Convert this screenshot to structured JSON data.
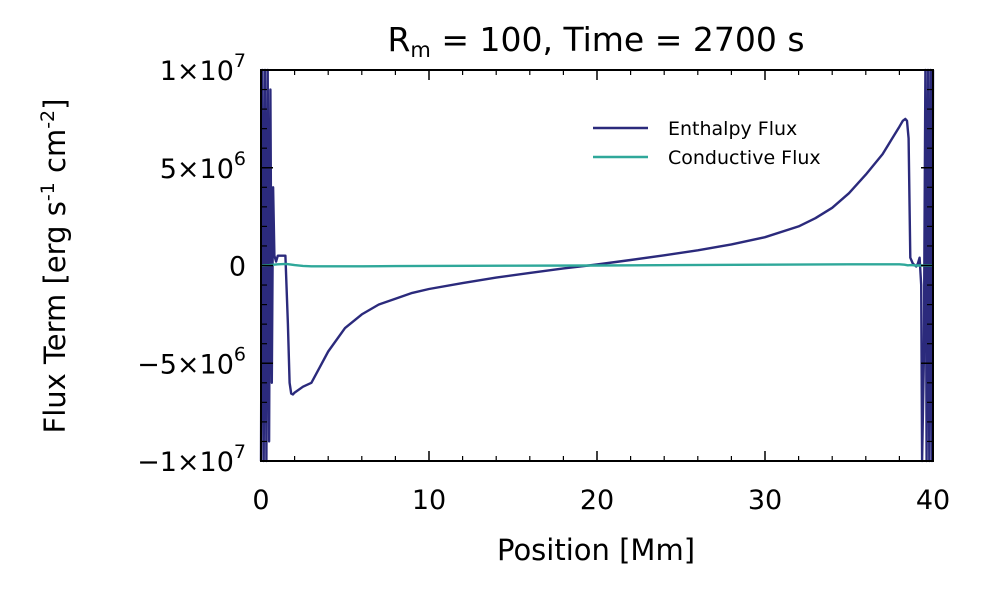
{
  "chart_data": {
    "type": "line",
    "title": "R_m = 100, Time = 2700 s",
    "title_parts": {
      "main": "R",
      "sub": "m",
      "rest": " = 100, Time = 2700 s"
    },
    "xlabel": "Position [Mm]",
    "ylabel": "Flux Term [erg s⁻¹ cm⁻²]",
    "ylabel_parts": {
      "pre": "Flux Term [erg s",
      "sup1": "-1",
      "mid": " cm",
      "sup2": "-2",
      "post": "]"
    },
    "xlim": [
      0,
      40
    ],
    "ylim": [
      -10000000,
      10000000
    ],
    "x_ticks": [
      {
        "value": 0,
        "label": "0"
      },
      {
        "value": 10,
        "label": "10"
      },
      {
        "value": 20,
        "label": "20"
      },
      {
        "value": 30,
        "label": "30"
      },
      {
        "value": 40,
        "label": "40"
      }
    ],
    "y_ticks": [
      {
        "value": 10000000,
        "base": "1×10",
        "exp": "7"
      },
      {
        "value": 5000000,
        "base": "5×10",
        "exp": "6"
      },
      {
        "value": 0,
        "base": "0",
        "exp": ""
      },
      {
        "value": -5000000,
        "base": "−5×10",
        "exp": "6"
      },
      {
        "value": -10000000,
        "base": "−1×10",
        "exp": "7"
      }
    ],
    "legend": {
      "position": "top-right"
    },
    "series": [
      {
        "name": "Enthalpy Flux",
        "color": "#2b2a7c",
        "x": [
          0.0,
          0.08,
          0.16,
          0.24,
          0.32,
          0.4,
          0.48,
          0.56,
          0.64,
          0.72,
          0.8,
          0.9,
          1.0,
          1.2,
          1.45,
          1.6,
          1.7,
          1.8,
          1.9,
          2.0,
          2.5,
          3.0,
          3.5,
          4.0,
          5.0,
          6.0,
          7.0,
          8.0,
          9.0,
          10.0,
          12.0,
          14.0,
          16.0,
          18.0,
          20.0,
          22.0,
          24.0,
          26.0,
          28.0,
          30.0,
          32.0,
          33.0,
          34.0,
          35.0,
          36.0,
          37.0,
          37.5,
          38.0,
          38.2,
          38.35,
          38.45,
          38.55,
          38.65,
          38.8,
          39.0,
          39.1,
          39.2,
          39.3,
          39.35,
          39.45,
          39.55,
          39.62,
          39.7,
          39.78,
          39.86,
          39.94,
          40.0
        ],
        "y": [
          -10000000,
          10000000,
          -10000000,
          10000000,
          -10000000,
          10000000,
          -9000000,
          9000000,
          -6000000,
          4000000,
          500000,
          200000,
          500000,
          500000,
          500000,
          -3000000,
          -6000000,
          -6550000,
          -6600000,
          -6500000,
          -6200000,
          -6000000,
          -5200000,
          -4400000,
          -3200000,
          -2500000,
          -2000000,
          -1700000,
          -1400000,
          -1200000,
          -900000,
          -620000,
          -380000,
          -150000,
          50000,
          280000,
          520000,
          780000,
          1080000,
          1450000,
          2000000,
          2420000,
          2950000,
          3700000,
          4650000,
          5700000,
          6400000,
          7100000,
          7400000,
          7500000,
          7400000,
          6500000,
          400000,
          100000,
          -50000,
          100000,
          400000,
          -1000000,
          -10000000,
          -5000000,
          10000000,
          -10000000,
          10000000,
          -10000000,
          10000000,
          -10000000,
          10000000
        ]
      },
      {
        "name": "Conductive Flux",
        "color": "#2fa89a",
        "x": [
          0.0,
          0.5,
          1.0,
          1.5,
          2.0,
          2.5,
          3.0,
          4.0,
          6.0,
          8.0,
          10.0,
          15.0,
          20.0,
          25.0,
          30.0,
          35.0,
          38.0,
          38.3,
          38.5,
          38.7,
          39.0,
          39.3,
          40.0
        ],
        "y": [
          0,
          20000,
          60000,
          80000,
          20000,
          -20000,
          -40000,
          -40000,
          -40000,
          -30000,
          -20000,
          -10000,
          0,
          20000,
          40000,
          60000,
          60000,
          40000,
          10000,
          20000,
          0,
          0,
          0
        ]
      }
    ]
  }
}
